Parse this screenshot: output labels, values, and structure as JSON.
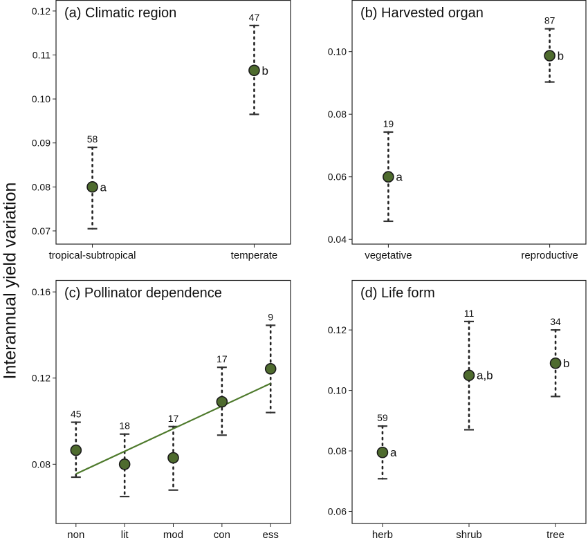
{
  "ylabel": "Interannual yield variation",
  "colors": {
    "point_fill": "#4e6b2e",
    "point_stroke": "#1a1a1a",
    "trend": "#4e7a2c",
    "whisker": "#333333"
  },
  "chart_data": [
    {
      "type": "scatter",
      "panel": "a",
      "title": "(a) Climatic region",
      "categories": [
        "tropical-subtropical",
        "temperate"
      ],
      "means": [
        0.08,
        0.1065
      ],
      "lower": [
        0.0705,
        0.0965
      ],
      "upper": [
        0.089,
        0.1167
      ],
      "n_labels": [
        "58",
        "47"
      ],
      "letters": [
        "a",
        "b"
      ],
      "yticks": [
        "0.07",
        "0.08",
        "0.09",
        "0.10",
        "0.11",
        "0.12"
      ],
      "ylim": [
        0.067,
        0.1225
      ],
      "grid": false
    },
    {
      "type": "scatter",
      "panel": "b",
      "title": "(b) Harvested organ",
      "categories": [
        "vegetative",
        "reproductive"
      ],
      "means": [
        0.06,
        0.0987
      ],
      "lower": [
        0.0458,
        0.0903
      ],
      "upper": [
        0.0743,
        0.1073
      ],
      "n_labels": [
        "19",
        "87"
      ],
      "letters": [
        "a",
        "b"
      ],
      "yticks": [
        "0.04",
        "0.06",
        "0.08",
        "0.10"
      ],
      "ylim": [
        0.0385,
        0.1165
      ],
      "grid": false
    },
    {
      "type": "scatter",
      "panel": "c",
      "title": "(c) Pollinator dependence",
      "categories": [
        "non",
        "lit",
        "mod",
        "con",
        "ess"
      ],
      "means": [
        0.0865,
        0.08,
        0.083,
        0.109,
        0.1243
      ],
      "lower": [
        0.074,
        0.065,
        0.068,
        0.0935,
        0.104
      ],
      "upper": [
        0.0995,
        0.094,
        0.0975,
        0.125,
        0.1445
      ],
      "n_labels": [
        "45",
        "18",
        "17",
        "17",
        "9"
      ],
      "letters": [],
      "trend_line": [
        0.0755,
        0.1175
      ],
      "yticks": [
        "0.08",
        "0.12",
        "0.16"
      ],
      "ylim": [
        0.0525,
        0.1655
      ],
      "grid": false
    },
    {
      "type": "scatter",
      "panel": "d",
      "title": "(d) Life form",
      "categories": [
        "herb",
        "shrub",
        "tree"
      ],
      "means": [
        0.0795,
        0.105,
        0.109
      ],
      "lower": [
        0.0708,
        0.087,
        0.098
      ],
      "upper": [
        0.0882,
        0.1228,
        0.12
      ],
      "n_labels": [
        "59",
        "11",
        "34"
      ],
      "letters": [
        "a",
        "a,b",
        "b"
      ],
      "yticks": [
        "0.06",
        "0.08",
        "0.10",
        "0.12"
      ],
      "ylim": [
        0.056,
        0.1365
      ],
      "grid": false
    }
  ]
}
